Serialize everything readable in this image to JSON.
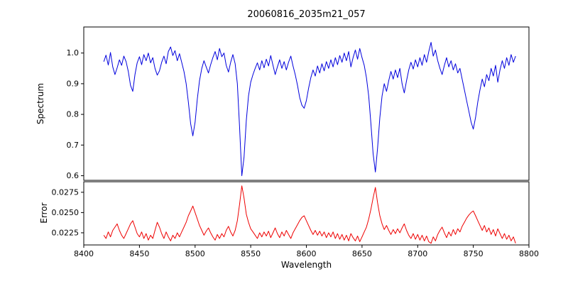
{
  "chart_data": [
    {
      "type": "line",
      "title": "20060816_2035m21_057",
      "ylabel": "Spectrum",
      "series_name": "spectrum",
      "color": "#0000dd",
      "xlim": [
        8400,
        8800
      ],
      "ylim": [
        0.585,
        1.085
      ],
      "yticks": [
        0.6,
        0.7,
        0.8,
        0.9,
        1.0
      ],
      "ytick_labels": [
        "0.6",
        "0.7",
        "0.8",
        "0.9",
        "1.0"
      ],
      "x_start": 8418,
      "x_step": 2,
      "values": [
        0.972,
        0.993,
        0.961,
        1.002,
        0.955,
        0.93,
        0.952,
        0.978,
        0.96,
        0.99,
        0.972,
        0.94,
        0.895,
        0.875,
        0.93,
        0.968,
        0.988,
        0.962,
        0.995,
        0.975,
        1.0,
        0.968,
        0.985,
        0.95,
        0.928,
        0.942,
        0.97,
        0.99,
        0.965,
        1.005,
        1.02,
        0.992,
        1.008,
        0.975,
        0.998,
        0.97,
        0.94,
        0.9,
        0.84,
        0.77,
        0.73,
        0.775,
        0.85,
        0.91,
        0.95,
        0.975,
        0.955,
        0.935,
        0.962,
        0.985,
        1.005,
        0.978,
        1.015,
        0.988,
        1.0,
        0.96,
        0.938,
        0.97,
        0.995,
        0.965,
        0.9,
        0.76,
        0.6,
        0.66,
        0.78,
        0.86,
        0.905,
        0.93,
        0.95,
        0.968,
        0.945,
        0.975,
        0.952,
        0.98,
        0.958,
        0.992,
        0.96,
        0.93,
        0.955,
        0.978,
        0.95,
        0.972,
        0.945,
        0.97,
        0.99,
        0.958,
        0.93,
        0.895,
        0.855,
        0.83,
        0.82,
        0.845,
        0.885,
        0.92,
        0.945,
        0.925,
        0.958,
        0.935,
        0.965,
        0.942,
        0.972,
        0.95,
        0.978,
        0.955,
        0.985,
        0.962,
        0.992,
        0.97,
        1.0,
        0.975,
        1.005,
        0.955,
        0.985,
        1.01,
        0.98,
        1.015,
        0.985,
        0.96,
        0.92,
        0.86,
        0.77,
        0.672,
        0.612,
        0.69,
        0.79,
        0.86,
        0.9,
        0.875,
        0.91,
        0.94,
        0.915,
        0.945,
        0.92,
        0.95,
        0.9,
        0.87,
        0.91,
        0.945,
        0.97,
        0.948,
        0.978,
        0.955,
        0.985,
        0.96,
        0.995,
        0.97,
        1.005,
        1.035,
        0.99,
        1.01,
        0.975,
        0.95,
        0.93,
        0.96,
        0.985,
        0.955,
        0.975,
        0.945,
        0.965,
        0.935,
        0.95,
        0.915,
        0.88,
        0.845,
        0.81,
        0.775,
        0.752,
        0.79,
        0.84,
        0.88,
        0.915,
        0.89,
        0.93,
        0.91,
        0.95,
        0.925,
        0.96,
        0.905,
        0.945,
        0.975,
        0.95,
        0.985,
        0.96,
        0.995,
        0.97,
        0.99
      ]
    },
    {
      "type": "line",
      "ylabel": "Error",
      "xlabel": "Wavelength",
      "series_name": "error",
      "color": "#ee0000",
      "xlim": [
        8400,
        8800
      ],
      "ylim": [
        0.021,
        0.0288
      ],
      "yticks": [
        0.0225,
        0.025,
        0.0275
      ],
      "ytick_labels": [
        "0.0225",
        "0.0250",
        "0.0275"
      ],
      "xticks": [
        8400,
        8450,
        8500,
        8550,
        8600,
        8650,
        8700,
        8750,
        8800
      ],
      "xtick_labels": [
        "8400",
        "8450",
        "8500",
        "8550",
        "8600",
        "8650",
        "8700",
        "8750",
        "8800"
      ],
      "x_start": 8418,
      "x_step": 2,
      "values": [
        0.0222,
        0.0218,
        0.0226,
        0.022,
        0.0228,
        0.0232,
        0.0236,
        0.0228,
        0.0222,
        0.0218,
        0.0224,
        0.023,
        0.0236,
        0.024,
        0.0232,
        0.0224,
        0.022,
        0.0226,
        0.0218,
        0.0224,
        0.0216,
        0.0222,
        0.0218,
        0.0228,
        0.0238,
        0.0232,
        0.0224,
        0.0218,
        0.0226,
        0.022,
        0.0215,
        0.0222,
        0.0218,
        0.0225,
        0.022,
        0.0226,
        0.0232,
        0.0238,
        0.0246,
        0.0252,
        0.0258,
        0.025,
        0.0242,
        0.0234,
        0.0228,
        0.0222,
        0.0227,
        0.0231,
        0.0225,
        0.022,
        0.0216,
        0.0223,
        0.0218,
        0.0224,
        0.022,
        0.0228,
        0.0233,
        0.0226,
        0.0221,
        0.0228,
        0.024,
        0.026,
        0.0283,
        0.0268,
        0.0248,
        0.0238,
        0.023,
        0.0226,
        0.0222,
        0.0218,
        0.0225,
        0.022,
        0.0226,
        0.0221,
        0.0227,
        0.0219,
        0.0225,
        0.0231,
        0.0224,
        0.0219,
        0.0226,
        0.0221,
        0.0228,
        0.0223,
        0.0218,
        0.0225,
        0.023,
        0.0235,
        0.024,
        0.0244,
        0.0246,
        0.024,
        0.0234,
        0.0228,
        0.0223,
        0.0228,
        0.0222,
        0.0227,
        0.0221,
        0.0226,
        0.0219,
        0.0225,
        0.022,
        0.0226,
        0.0218,
        0.0224,
        0.0217,
        0.0223,
        0.0216,
        0.0222,
        0.0215,
        0.0224,
        0.0219,
        0.0215,
        0.0221,
        0.0214,
        0.022,
        0.0226,
        0.0232,
        0.0242,
        0.0254,
        0.0268,
        0.0281,
        0.0262,
        0.0246,
        0.0236,
        0.0229,
        0.0234,
        0.0228,
        0.0223,
        0.0229,
        0.0224,
        0.023,
        0.0225,
        0.0231,
        0.0236,
        0.0228,
        0.0222,
        0.0218,
        0.0224,
        0.0217,
        0.0223,
        0.0216,
        0.0222,
        0.0215,
        0.0221,
        0.0214,
        0.0212,
        0.022,
        0.0215,
        0.0223,
        0.0228,
        0.0232,
        0.0225,
        0.0219,
        0.0226,
        0.0221,
        0.0229,
        0.0223,
        0.023,
        0.0226,
        0.0233,
        0.0238,
        0.0243,
        0.0247,
        0.025,
        0.0252,
        0.0246,
        0.024,
        0.0234,
        0.0228,
        0.0234,
        0.0226,
        0.0231,
        0.0223,
        0.0229,
        0.0221,
        0.023,
        0.0224,
        0.0218,
        0.0224,
        0.0217,
        0.0222,
        0.0215,
        0.022,
        0.0212
      ]
    }
  ]
}
